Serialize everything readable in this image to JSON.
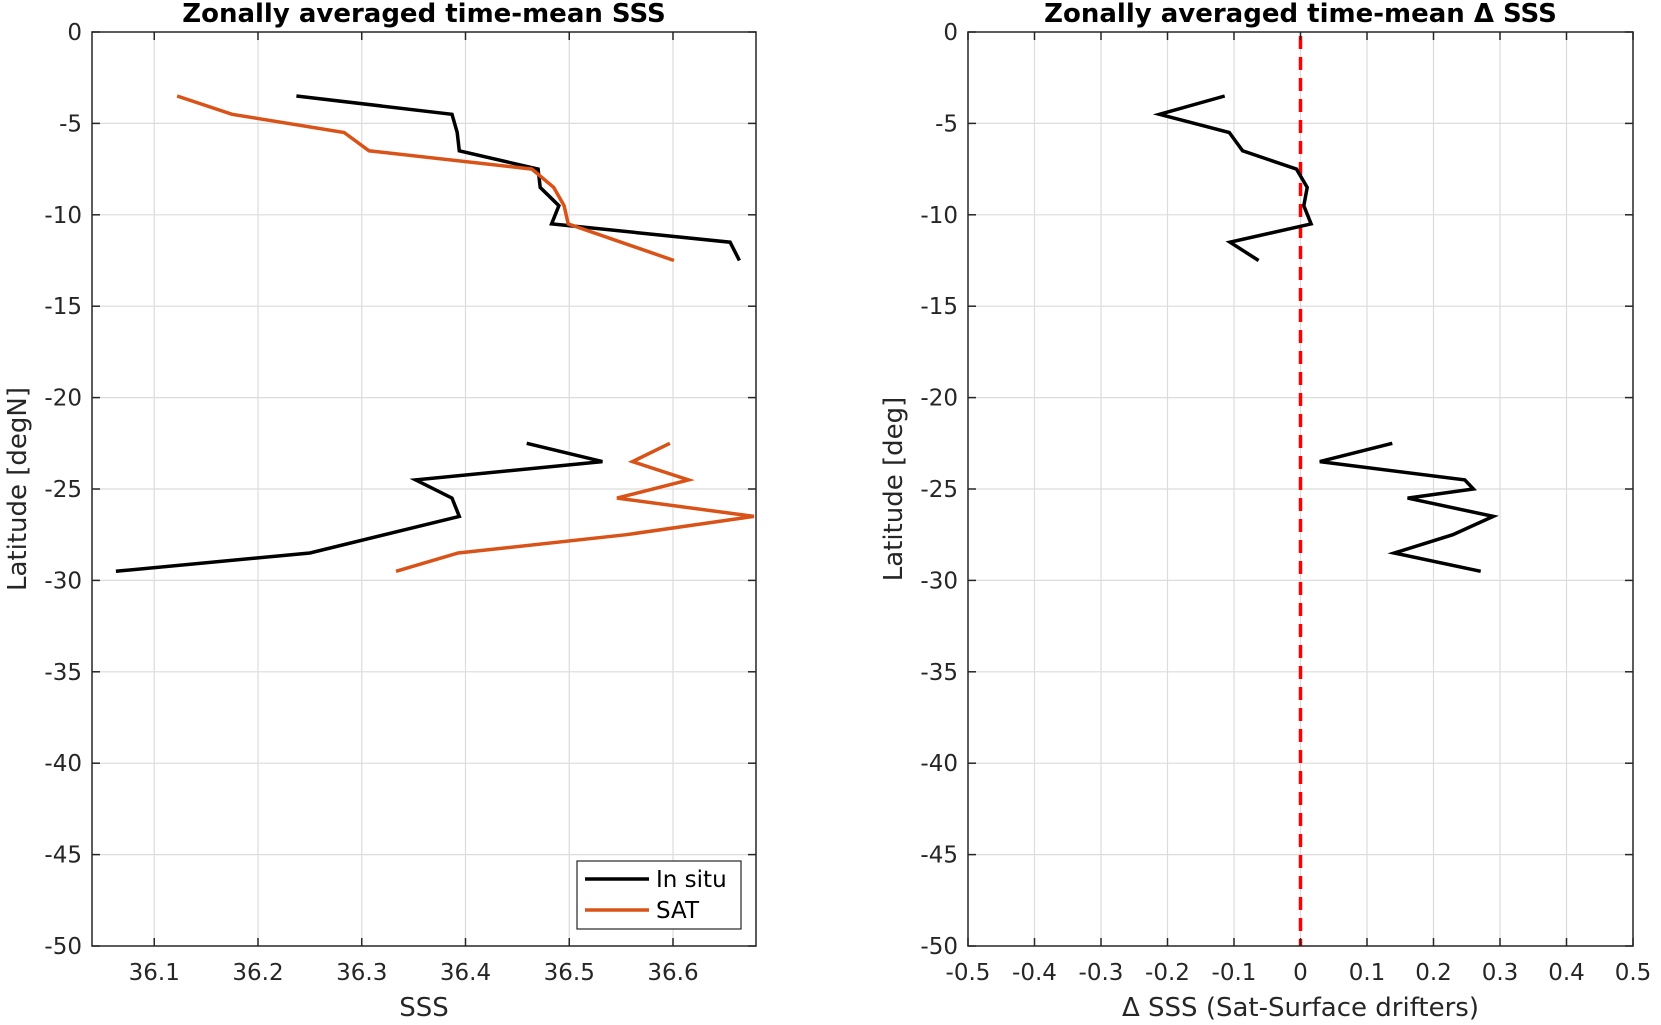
{
  "chart_data": [
    {
      "type": "line",
      "title": "Zonally averaged time-mean SSS",
      "xlabel": "SSS",
      "ylabel": "Latitude [degN]",
      "xlim": [
        36.04,
        36.68
      ],
      "ylim": [
        -50,
        0
      ],
      "xticks": [
        36.1,
        36.2,
        36.3,
        36.4,
        36.5,
        36.6
      ],
      "yticks": [
        0,
        -5,
        -10,
        -15,
        -20,
        -25,
        -30,
        -35,
        -40,
        -45,
        -50
      ],
      "grid": true,
      "legend": "bottom-right",
      "series": [
        {
          "name": "In situ",
          "color": "#000000",
          "segments": [
            [
              [
                36.237,
                -3.5
              ],
              [
                36.387,
                -4.5
              ],
              [
                36.392,
                -5.5
              ],
              [
                36.394,
                -6.5
              ],
              [
                36.47,
                -7.5
              ],
              [
                36.472,
                -8.5
              ],
              [
                36.49,
                -9.5
              ],
              [
                36.483,
                -10.5
              ],
              [
                36.655,
                -11.5
              ],
              [
                36.664,
                -12.5
              ]
            ],
            [
              [
                36.459,
                -22.5
              ],
              [
                36.532,
                -23.5
              ],
              [
                36.352,
                -24.5
              ],
              [
                36.387,
                -25.5
              ],
              [
                36.394,
                -26.5
              ],
              [
                36.25,
                -28.5
              ],
              [
                36.063,
                -29.5
              ]
            ]
          ]
        },
        {
          "name": "SAT",
          "color": "#d95319",
          "segments": [
            [
              [
                36.122,
                -3.5
              ],
              [
                36.175,
                -4.5
              ],
              [
                36.283,
                -5.5
              ],
              [
                36.307,
                -6.5
              ],
              [
                36.464,
                -7.5
              ],
              [
                36.485,
                -8.5
              ],
              [
                36.495,
                -9.5
              ],
              [
                36.499,
                -10.5
              ],
              [
                36.601,
                -12.5
              ]
            ],
            [
              [
                36.597,
                -22.5
              ],
              [
                36.561,
                -23.5
              ],
              [
                36.615,
                -24.5
              ],
              [
                36.546,
                -25.5
              ],
              [
                36.678,
                -26.5
              ],
              [
                36.555,
                -27.5
              ],
              [
                36.393,
                -28.5
              ],
              [
                36.333,
                -29.5
              ]
            ]
          ]
        }
      ]
    },
    {
      "type": "line",
      "title": "Zonally averaged time-mean Δ SSS",
      "xlabel": "Δ SSS (Sat-Surface drifters)",
      "ylabel": "Latitude [deg]",
      "xlim": [
        -0.5,
        0.5
      ],
      "ylim": [
        -50,
        0
      ],
      "xticks": [
        -0.5,
        -0.4,
        -0.3,
        -0.2,
        -0.1,
        0,
        0.1,
        0.2,
        0.3,
        0.4,
        0.5
      ],
      "xtick_labels": [
        "-0.5",
        "-0.4",
        "-0.3",
        "-0.2",
        "-0.1",
        "0",
        "0.1",
        "0.2",
        "0.3",
        "0.4",
        "0.5"
      ],
      "yticks": [
        0,
        -5,
        -10,
        -15,
        -20,
        -25,
        -30,
        -35,
        -40,
        -45,
        -50
      ],
      "grid": true,
      "reference_line": {
        "x": 0,
        "color": "#ff0000",
        "style": "dashed"
      },
      "series": [
        {
          "color": "#000000",
          "segments": [
            [
              [
                -0.114,
                -3.5
              ],
              [
                -0.212,
                -4.5
              ],
              [
                -0.107,
                -5.5
              ],
              [
                -0.087,
                -6.5
              ],
              [
                -0.006,
                -7.5
              ],
              [
                0.01,
                -8.5
              ],
              [
                0.005,
                -9.5
              ],
              [
                0.016,
                -10.5
              ],
              [
                -0.106,
                -11.5
              ],
              [
                -0.063,
                -12.5
              ]
            ],
            [
              [
                0.138,
                -22.5
              ],
              [
                0.029,
                -23.5
              ],
              [
                0.247,
                -24.5
              ],
              [
                0.26,
                -25.0
              ],
              [
                0.161,
                -25.5
              ],
              [
                0.29,
                -26.5
              ],
              [
                0.229,
                -27.5
              ],
              [
                0.141,
                -28.5
              ],
              [
                0.271,
                -29.5
              ]
            ]
          ]
        }
      ]
    }
  ]
}
